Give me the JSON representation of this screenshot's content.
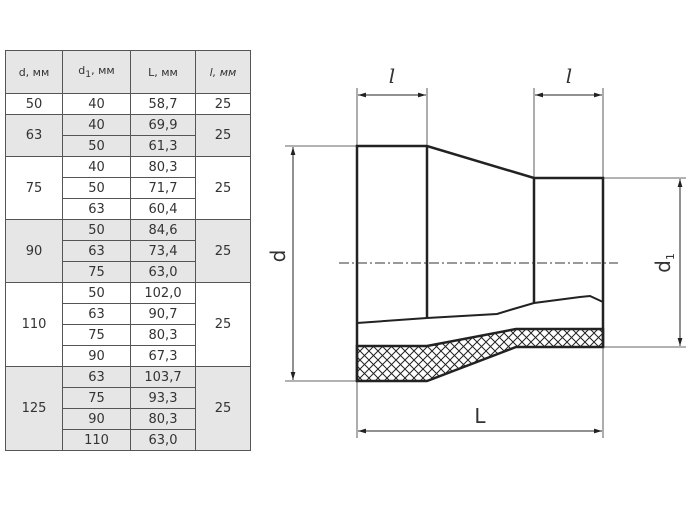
{
  "table": {
    "headers": [
      "d, мм",
      "d1, мм",
      "L, мм",
      "l, мм"
    ],
    "groups": [
      {
        "d": "50",
        "l": "25",
        "rows": [
          [
            "40",
            "58,7"
          ]
        ]
      },
      {
        "d": "63",
        "l": "25",
        "rows": [
          [
            "40",
            "69,9"
          ],
          [
            "50",
            "61,3"
          ]
        ]
      },
      {
        "d": "75",
        "l": "25",
        "rows": [
          [
            "40",
            "80,3"
          ],
          [
            "50",
            "71,7"
          ],
          [
            "63",
            "60,4"
          ]
        ]
      },
      {
        "d": "90",
        "l": "25",
        "rows": [
          [
            "50",
            "84,6"
          ],
          [
            "63",
            "73,4"
          ],
          [
            "75",
            "63,0"
          ]
        ]
      },
      {
        "d": "110",
        "l": "25",
        "rows": [
          [
            "50",
            "102,0"
          ],
          [
            "63",
            "90,7"
          ],
          [
            "75",
            "80,3"
          ],
          [
            "90",
            "67,3"
          ]
        ]
      },
      {
        "d": "125",
        "l": "25",
        "rows": [
          [
            "63",
            "103,7"
          ],
          [
            "75",
            "93,3"
          ],
          [
            "90",
            "80,3"
          ],
          [
            "110",
            "63,0"
          ]
        ]
      }
    ]
  },
  "drawing": {
    "label_l": "l",
    "label_d": "d",
    "label_d1": "d",
    "label_d1_sub": "1",
    "label_L": "L"
  }
}
